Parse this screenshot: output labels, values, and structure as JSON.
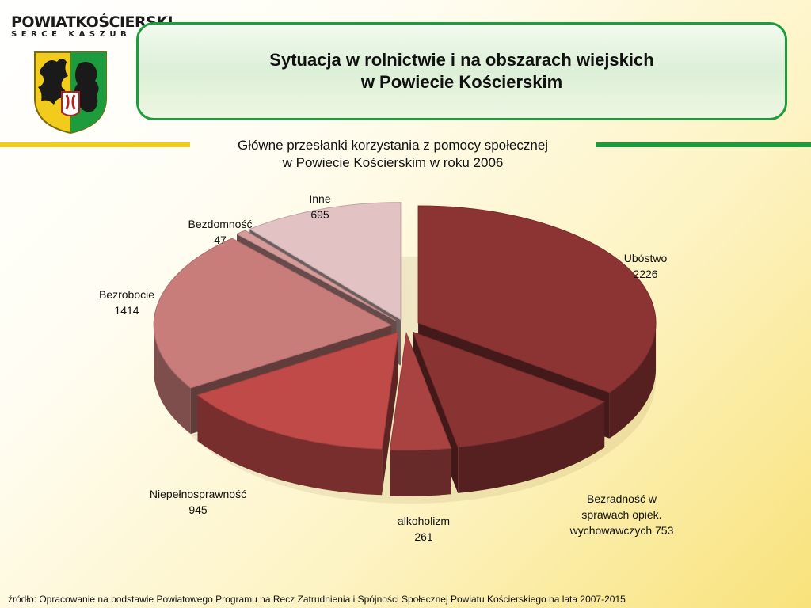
{
  "logo": {
    "name_line": "POWIATKOŚCIERSKI",
    "tagline": "SERCE KASZUB"
  },
  "header": {
    "title_line1": "Sytuacja w rolnictwie i na obszarach wiejskich",
    "title_line2": "w Powiecie Kościerskim"
  },
  "colors": {
    "accent_green": "#1c9c3c",
    "accent_yellow": "#f2cc1d"
  },
  "chart_data": {
    "type": "pie",
    "title_line1": "Główne przesłanki korzystania z pomocy społecznej",
    "title_line2": "w Powiecie Kościerskim  w roku 2006",
    "slices": [
      {
        "label": "Ubóstwo",
        "value": 2226,
        "color": "#8c3434"
      },
      {
        "label": "Bezradność w sprawach opiek. wychowawczych",
        "value": 753,
        "color": "#8a3333"
      },
      {
        "label": "alkoholizm",
        "value": 261,
        "color": "#a84342"
      },
      {
        "label": "Niepełnosprawność",
        "value": 945,
        "color": "#c04a48"
      },
      {
        "label": "Bezrobocie",
        "value": 1414,
        "color": "#c97d7b"
      },
      {
        "label": "Bezdomność",
        "value": 47,
        "color": "#d59c9a"
      },
      {
        "label": "Inne",
        "value": 695,
        "color": "#e2c2c3"
      }
    ],
    "data_labels": [
      "Ubóstwo\n2226",
      "Bezradność w\nsprawach opiek.\nwychowawczych 753",
      "alkoholizm\n261",
      "Niepełnosprawność\n945",
      "Bezrobocie\n1414",
      "Bezdomność\n47",
      "Inne\n695"
    ]
  },
  "footer": {
    "source": "źródło: Opracowanie na podstawie Powiatowego Programu na Recz Zatrudnienia i Spójności Społecznej Powiatu Kościerskiego na lata 2007-2015"
  }
}
